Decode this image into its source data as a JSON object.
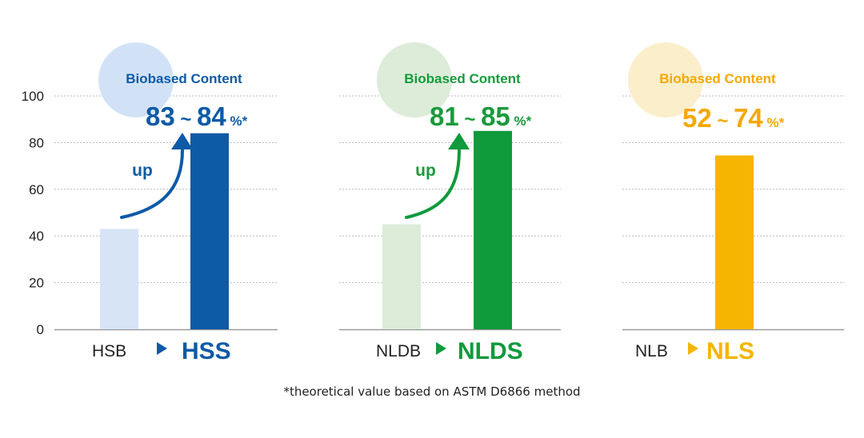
{
  "chart_data": [
    {
      "type": "bar",
      "ylim": [
        0,
        100
      ],
      "yticks": [
        0,
        20,
        40,
        60,
        80,
        100
      ],
      "grid": true,
      "categories": [
        "HSB",
        "HSS"
      ],
      "values": [
        43,
        84
      ],
      "badge_label": "Biobased Content",
      "range_low": "83",
      "range_sep": "~",
      "range_high": "84",
      "unit": "%*",
      "arrow_label": "up",
      "colors": {
        "light_bar": "#d6e4f6",
        "dark_bar": "#0d5aa7",
        "text": "#0d5aa7",
        "circle": "#d2e2f6"
      }
    },
    {
      "type": "bar",
      "ylim": [
        0,
        100
      ],
      "grid": true,
      "categories": [
        "NLDB",
        "NLDS"
      ],
      "values": [
        45,
        85
      ],
      "badge_label": "Biobased Content",
      "range_low": "81",
      "range_sep": "~",
      "range_high": "85",
      "unit": "%*",
      "arrow_label": "up",
      "colors": {
        "light_bar": "#dcecd9",
        "dark_bar": "#0f9a3c",
        "text": "#1a9a3c",
        "circle": "#dcecd9"
      }
    },
    {
      "type": "bar",
      "ylim": [
        0,
        100
      ],
      "grid": true,
      "categories": [
        "NLB",
        "NLS"
      ],
      "values": [
        null,
        74.5
      ],
      "badge_label": "Biobased Content",
      "range_low": "52",
      "range_sep": "~",
      "range_high": "74",
      "unit": "%*",
      "colors": {
        "dark_bar": "#f5b500",
        "text": "#f5a800",
        "circle": "#fbeecb"
      }
    }
  ],
  "footnote": "*theoretical value based on ASTM D6866 method"
}
